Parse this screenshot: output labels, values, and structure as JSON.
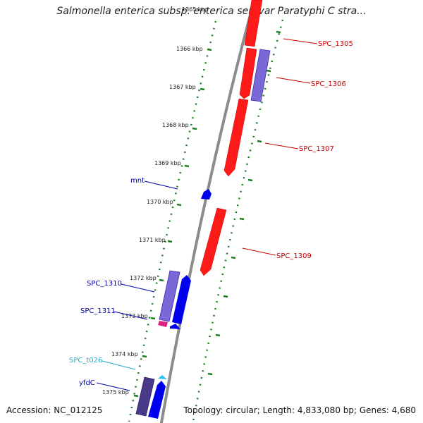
{
  "title": "Salmonella enterica subsp. enterica serovar Paratyphi C stra...",
  "footer": {
    "accession": "Accession: NC_012125",
    "summary": "Topology: circular; Length: 4,833,080 bp; Genes: 4,680"
  },
  "colors": {
    "backbone": "#8c8c8c",
    "ruler": "#1e7f1e",
    "forward_cds": "#ff1a1a",
    "reverse_cds": "#0000f0",
    "reverse_cds_light": "#7b68d8",
    "trna": "#33bbee",
    "misc": "#e0207f"
  },
  "tick_labels": [
    "1365 kbp",
    "1366 kbp",
    "1367 kbp",
    "1368 kbp",
    "1369 kbp",
    "1370 kbp",
    "1371 kbp",
    "1372 kbp",
    "1373 kbp",
    "1374 kbp",
    "1375 kbp"
  ],
  "gene_labels": [
    {
      "text": "SPC_1305",
      "color": "#cc0000"
    },
    {
      "text": "SPC_1306",
      "color": "#cc0000"
    },
    {
      "text": "SPC_1307",
      "color": "#cc0000"
    },
    {
      "text": "SPC_1309",
      "color": "#cc0000"
    },
    {
      "text": "mnt",
      "color": "#0000aa"
    },
    {
      "text": "SPC_1310",
      "color": "#0000aa"
    },
    {
      "text": "SPC_1311",
      "color": "#0000aa"
    },
    {
      "text": "SPC_t026",
      "color": "#22aacc"
    },
    {
      "text": "yfdC",
      "color": "#0000aa"
    }
  ]
}
